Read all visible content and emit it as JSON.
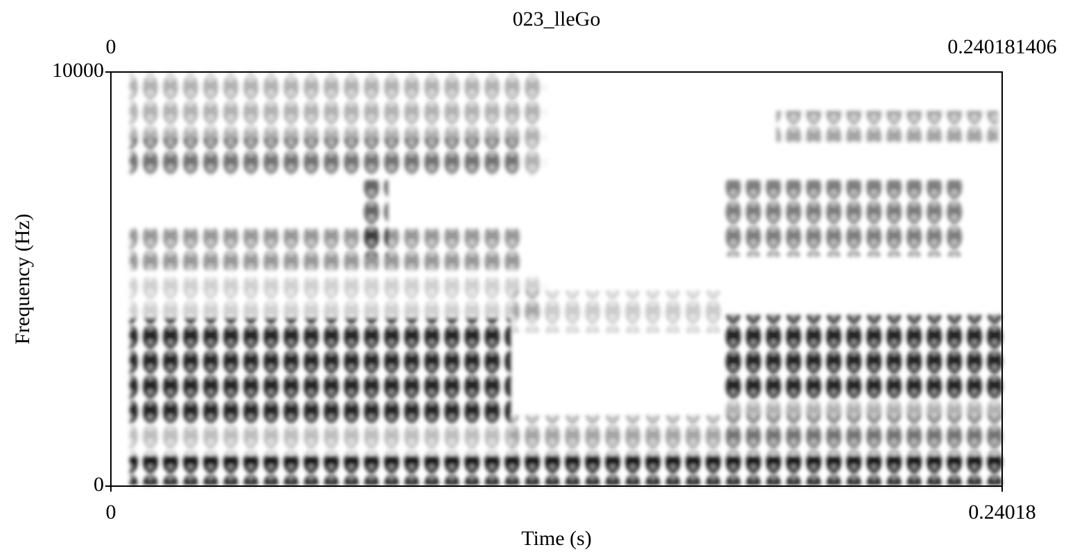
{
  "chart_data": {
    "type": "spectrogram",
    "title": "023_lleGo",
    "x_label": "Time (s)",
    "y_label": "Frequency (Hz)",
    "xlim": [
      0,
      0.240181406
    ],
    "ylim": [
      0,
      10000
    ],
    "xticks": [
      0,
      {
        "value": 0.240181406,
        "label": "0.24018"
      }
    ],
    "yticks": [
      0,
      10000
    ]
  }
}
